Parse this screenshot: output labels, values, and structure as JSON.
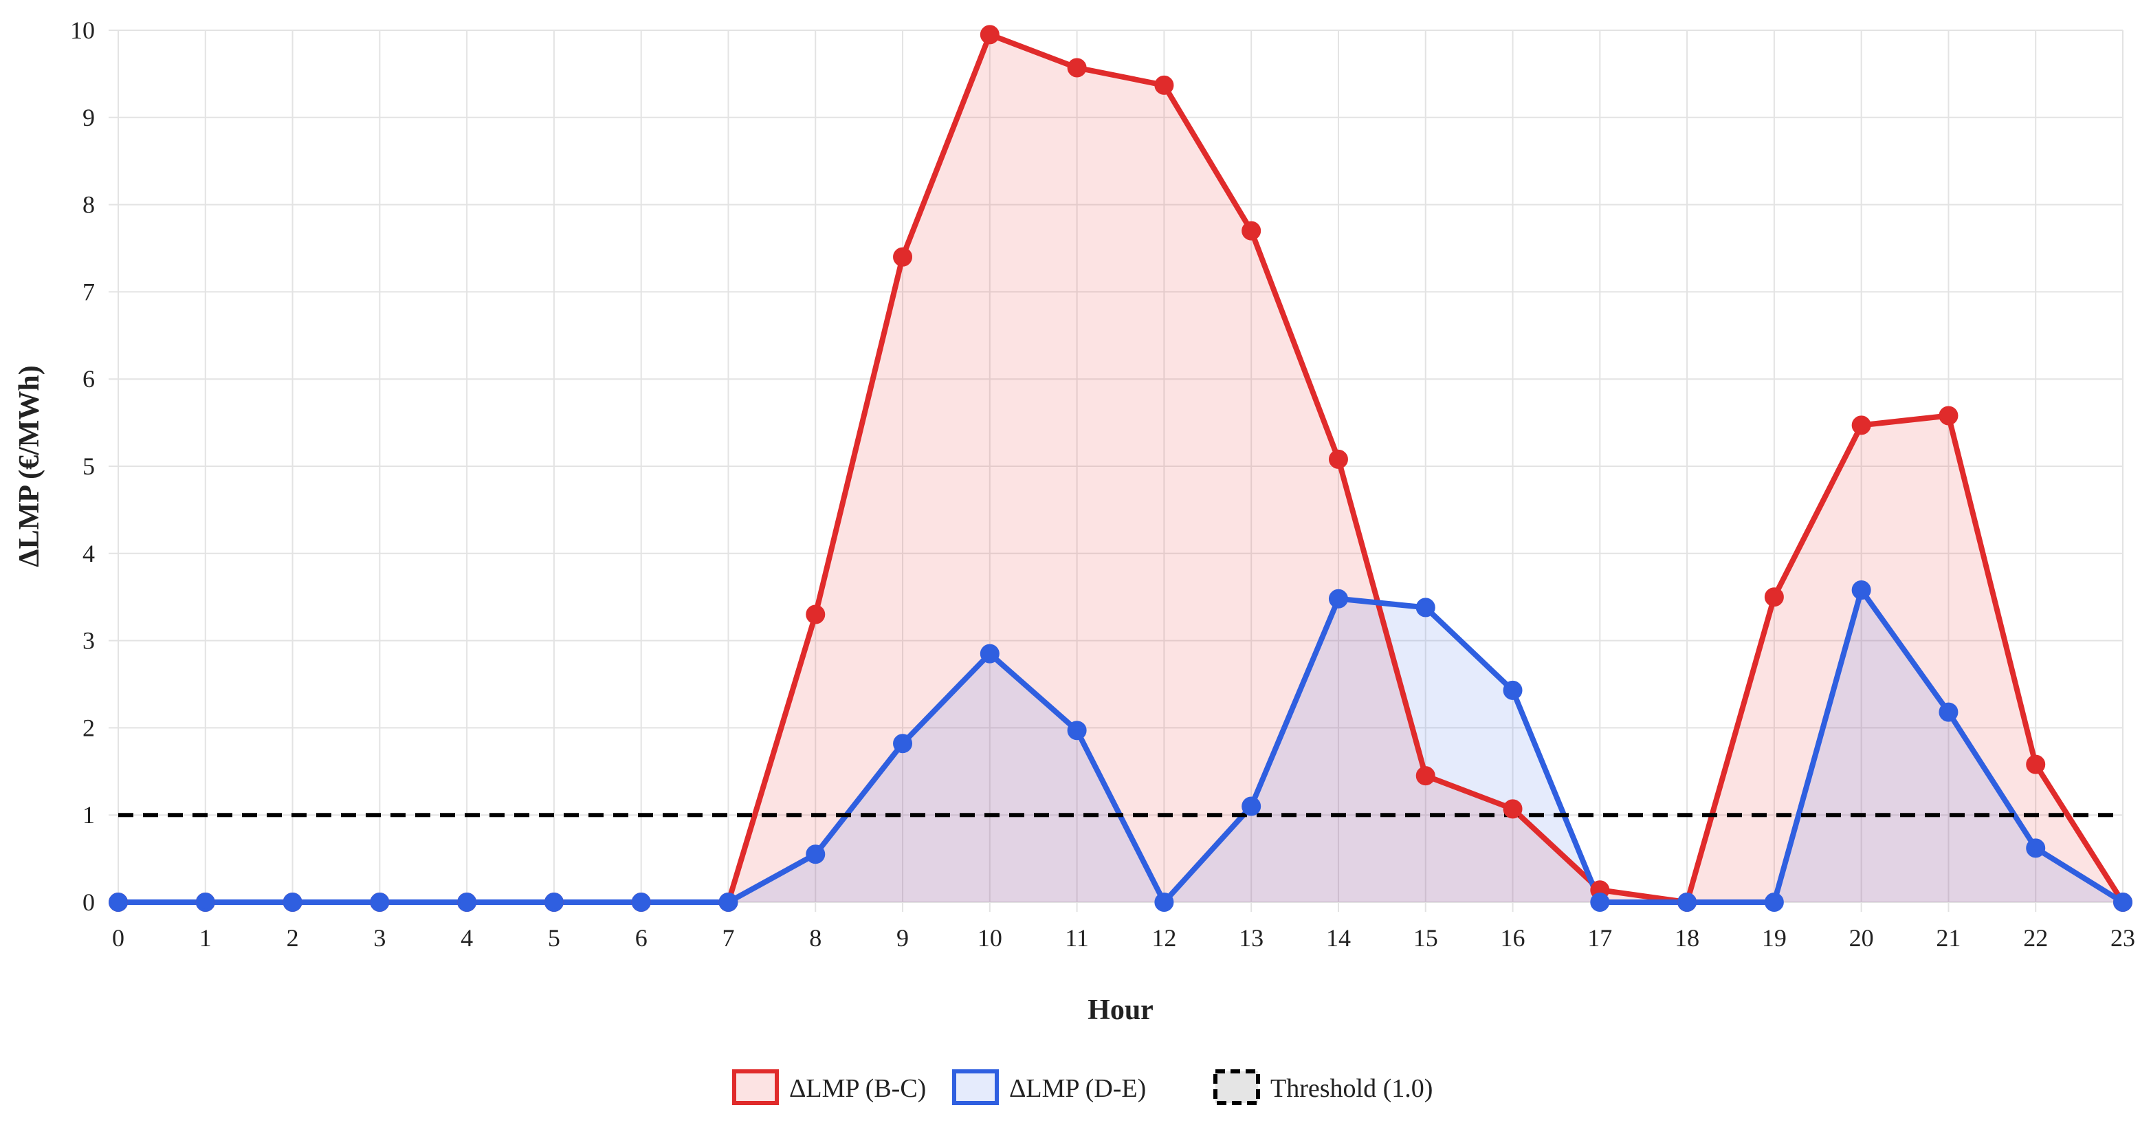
{
  "chart_data": {
    "type": "line",
    "xlabel": "Hour",
    "ylabel": "ΔLMP (€/MWh)",
    "ylim": [
      0,
      10
    ],
    "xlim": [
      0,
      23
    ],
    "grid": true,
    "legend_position": "bottom-center",
    "categories": [
      "0",
      "1",
      "2",
      "3",
      "4",
      "5",
      "6",
      "7",
      "8",
      "9",
      "10",
      "11",
      "12",
      "13",
      "14",
      "15",
      "16",
      "17",
      "18",
      "19",
      "20",
      "21",
      "22",
      "23"
    ],
    "yticks": [
      "0",
      "1",
      "2",
      "3",
      "4",
      "5",
      "6",
      "7",
      "8",
      "9",
      "10"
    ],
    "series": [
      {
        "name": "ΔLMP (B-C)",
        "color": "#e02b2b",
        "fill": "rgba(232, 60, 60, 0.14)",
        "style": "solid",
        "markers": true,
        "values": [
          0,
          0,
          0,
          0,
          0,
          0,
          0,
          0,
          3.3,
          7.4,
          9.95,
          9.57,
          9.37,
          7.7,
          5.08,
          1.45,
          1.07,
          0.14,
          0,
          3.5,
          5.47,
          5.58,
          1.58,
          0
        ]
      },
      {
        "name": "ΔLMP (D-E)",
        "color": "#2f5fe0",
        "fill": "rgba(80, 120, 235, 0.15)",
        "style": "solid",
        "markers": true,
        "values": [
          0,
          0,
          0,
          0,
          0,
          0,
          0,
          0,
          0.55,
          1.82,
          2.85,
          1.97,
          0,
          1.1,
          3.48,
          3.38,
          2.43,
          0,
          0,
          0,
          3.58,
          2.18,
          0.62,
          0
        ]
      },
      {
        "name": "Threshold (1.0)",
        "color": "#000000",
        "fill": "rgba(0, 0, 0, 0.1)",
        "style": "dashed",
        "markers": false,
        "values": [
          1,
          1,
          1,
          1,
          1,
          1,
          1,
          1,
          1,
          1,
          1,
          1,
          1,
          1,
          1,
          1,
          1,
          1,
          1,
          1,
          1,
          1,
          1,
          1
        ]
      }
    ]
  }
}
